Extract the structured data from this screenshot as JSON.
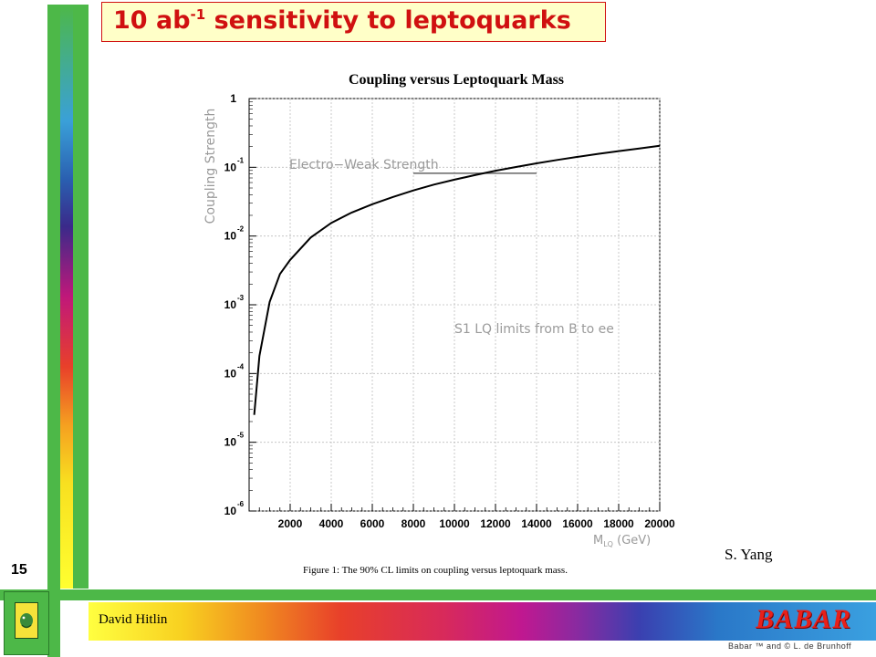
{
  "slide": {
    "title_main": "10 ab",
    "title_sup": "-1",
    "title_rest": " sensitivity to leptoquarks",
    "number": "15",
    "credit": "S. Yang"
  },
  "footer": {
    "author": "David Hitlin",
    "logo_text": "BABAR",
    "copyright": "Babar ™ and © L. de Brunhoff"
  },
  "chart_data": {
    "type": "line",
    "title": "Coupling versus Leptoquark Mass",
    "xlabel": "M",
    "xlabel_sub": "LQ",
    "xlabel_unit": " (GeV)",
    "ylabel": "Coupling Strength",
    "xlim": [
      0,
      20000
    ],
    "ylim": [
      1e-06,
      1
    ],
    "y_scale": "log",
    "grid": true,
    "x_ticks": [
      2000,
      4000,
      6000,
      8000,
      10000,
      12000,
      14000,
      16000,
      18000,
      20000
    ],
    "y_ticks": [
      {
        "value": 1,
        "base": "1",
        "exp": ""
      },
      {
        "value": 0.1,
        "base": "10",
        "exp": "-1"
      },
      {
        "value": 0.01,
        "base": "10",
        "exp": "-2"
      },
      {
        "value": 0.001,
        "base": "10",
        "exp": "-3"
      },
      {
        "value": 0.0001,
        "base": "10",
        "exp": "-4"
      },
      {
        "value": 1e-05,
        "base": "10",
        "exp": "-5"
      },
      {
        "value": 1e-06,
        "base": "10",
        "exp": "-6"
      }
    ],
    "series": [
      {
        "x": [
          250,
          500,
          1000,
          1500,
          2000,
          3000,
          4000,
          5000,
          6000,
          7000,
          8000,
          9000,
          10000,
          11000,
          12000,
          13000,
          14000,
          15000,
          16000,
          17000,
          18000,
          19000,
          20000
        ],
        "y": [
          2.5e-05,
          0.00018,
          0.0011,
          0.0028,
          0.0045,
          0.0095,
          0.0155,
          0.022,
          0.029,
          0.037,
          0.046,
          0.056,
          0.066,
          0.077,
          0.089,
          0.101,
          0.114,
          0.128,
          0.142,
          0.157,
          0.172,
          0.188,
          0.205
        ]
      }
    ],
    "annotations": {
      "ew_label": "Electro−Weak Strength",
      "ew_line": {
        "x": [
          8000,
          14000
        ],
        "y": 0.082
      },
      "limits_label": "S1 LQ limits from B to ee"
    },
    "caption": "Figure 1:  The 90% CL limits on coupling versus leptoquark mass."
  }
}
